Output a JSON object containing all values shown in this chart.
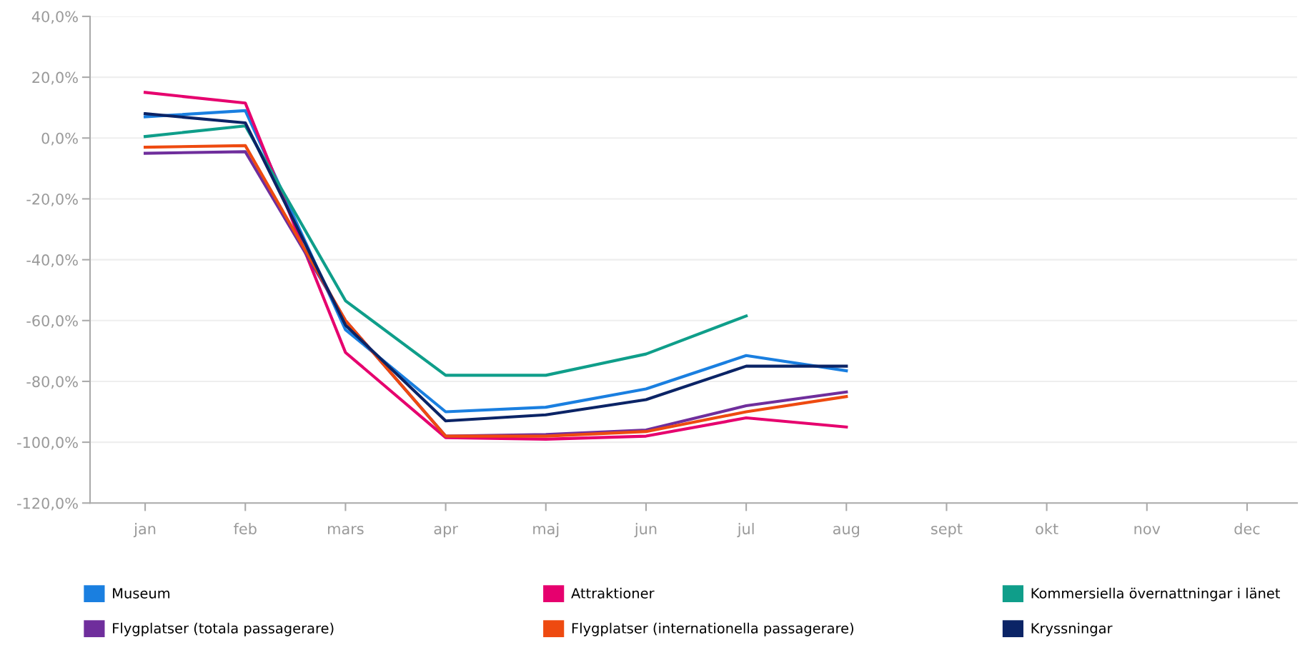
{
  "chart_data": {
    "type": "line",
    "categories": [
      "jan",
      "feb",
      "mars",
      "apr",
      "maj",
      "jun",
      "jul",
      "aug",
      "sept",
      "okt",
      "nov",
      "dec"
    ],
    "series": [
      {
        "name": "Museum",
        "color": "#1a7fe0",
        "values": [
          7,
          9,
          -63,
          -90,
          -88.5,
          -82.5,
          -71.5,
          -76.5,
          null,
          null,
          null,
          null
        ]
      },
      {
        "name": "Attraktioner",
        "color": "#e6006e",
        "values": [
          15,
          11.5,
          -70.5,
          -98.5,
          -99,
          -98,
          -92,
          -95,
          null,
          null,
          null,
          null
        ]
      },
      {
        "name": "Kommersiella övernattningar i länet",
        "color": "#0f9e8a",
        "values": [
          0.5,
          4,
          -53.5,
          -78,
          -78,
          -71,
          -58.5,
          null,
          null,
          null,
          null,
          null
        ]
      },
      {
        "name": "Flygplatser (totala passagerare)",
        "color": "#6f2e9c",
        "values": [
          -5,
          -4.5,
          -60,
          -98,
          -97.5,
          -96,
          -88,
          -83.5,
          null,
          null,
          null,
          null
        ]
      },
      {
        "name": "Flygplatser (internationella passagerare)",
        "color": "#ee4a10",
        "values": [
          -3,
          -2.5,
          -60,
          -98,
          -98,
          -96.5,
          -90,
          -85,
          null,
          null,
          null,
          null
        ]
      },
      {
        "name": "Kryssningar",
        "color": "#0b2466",
        "values": [
          8,
          5,
          -61.5,
          -93,
          -91,
          -86,
          -75,
          -75,
          null,
          null,
          null,
          null
        ]
      }
    ],
    "ylim": [
      -120,
      40
    ],
    "yticks": [
      {
        "value": -120,
        "label": "-120,0%"
      },
      {
        "value": -100,
        "label": "-100,0%"
      },
      {
        "value": -80,
        "label": "-80,0%"
      },
      {
        "value": -60,
        "label": "-60,0%"
      },
      {
        "value": -40,
        "label": "-40,0%"
      },
      {
        "value": -20,
        "label": "-20,0%"
      },
      {
        "value": 0,
        "label": "0,0%"
      },
      {
        "value": 20,
        "label": "20,0%"
      },
      {
        "value": 40,
        "label": "40,0%"
      }
    ],
    "grid": "y",
    "legend": "bottom",
    "marker": "none",
    "line_style": "solid"
  }
}
